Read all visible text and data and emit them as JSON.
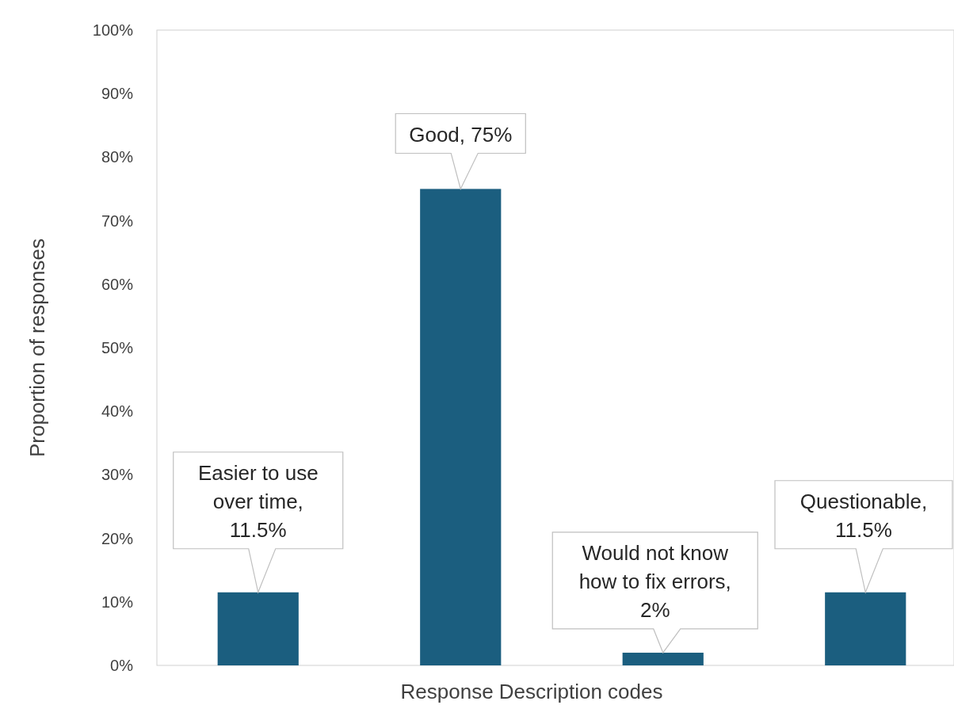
{
  "chart_data": {
    "type": "bar",
    "xlabel": "Response Description codes",
    "ylabel": "Proportion of responses",
    "categories": [
      null,
      null,
      null,
      null
    ],
    "values": [
      11.5,
      75,
      2,
      11.5
    ],
    "color": "#1b5e7f",
    "value_labels": [
      "Easier to use over time, 11.5%",
      "Good, 75%",
      "Would not know how to fix errors, 2%",
      "Questionable, 11.5%"
    ],
    "ylim": [
      0,
      100
    ],
    "yticks": [
      {
        "value": 0,
        "label": "0%"
      },
      {
        "value": 10,
        "label": "10%"
      },
      {
        "value": 20,
        "label": "20%"
      },
      {
        "value": 30,
        "label": "30%"
      },
      {
        "value": 40,
        "label": "40%"
      },
      {
        "value": 50,
        "label": "50%"
      },
      {
        "value": 60,
        "label": "60%"
      },
      {
        "value": 70,
        "label": "70%"
      },
      {
        "value": 80,
        "label": "80%"
      },
      {
        "value": 90,
        "label": "90%"
      },
      {
        "value": 100,
        "label": "100%"
      }
    ],
    "grid": false
  }
}
